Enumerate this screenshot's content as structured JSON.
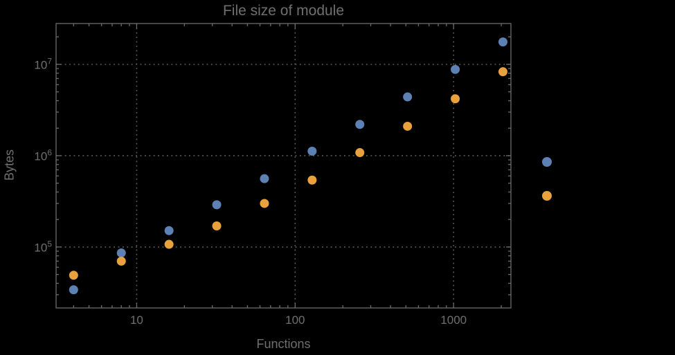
{
  "chart_data": {
    "type": "scatter",
    "title": "File size of module",
    "xlabel": "Functions",
    "ylabel": "Bytes",
    "xscale": "log",
    "yscale": "log",
    "xlim": [
      3.1,
      2300
    ],
    "ylim": [
      21500,
      28000000
    ],
    "x_ticks": [
      10,
      100,
      1000
    ],
    "y_ticks": [
      100000,
      1000000,
      10000000
    ],
    "grid": "dotted-major-only",
    "legend_position": "right-outside-markers-only",
    "x": [
      4,
      8,
      16,
      32,
      64,
      128,
      256,
      512,
      1024,
      2048
    ],
    "series": [
      {
        "name": "series-1-blue",
        "color": "#5e81b5",
        "values": [
          34000,
          86000,
          151000,
          290000,
          560000,
          1120000,
          2200000,
          4400000,
          8800000,
          17600000
        ]
      },
      {
        "name": "series-2-orange",
        "color": "#e8a13c",
        "values": [
          49000,
          70000,
          107000,
          170000,
          300000,
          540000,
          1080000,
          2100000,
          4200000,
          8300000
        ]
      }
    ],
    "marker_radius": 6.5,
    "colors": {
      "background": "#000000",
      "frame": "#6b6b6b",
      "grid": "#5f5f5f",
      "text": "#6f6f6f"
    }
  }
}
